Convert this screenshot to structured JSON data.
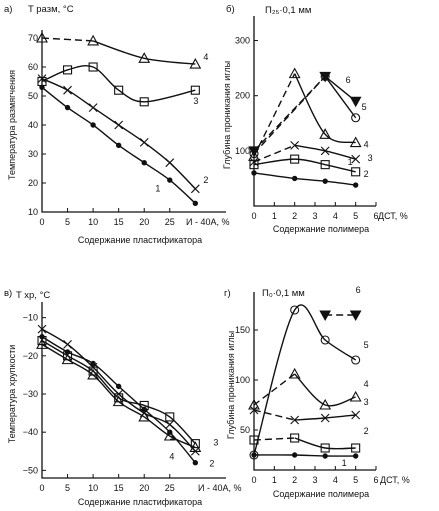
{
  "chart_data": [
    {
      "type": "line",
      "panel": "а)",
      "ylabel_top": "T разм, °C",
      "ylabel": "Температура размягчения",
      "xlabel": "Содержание пластификатора",
      "xlim": [
        0,
        36
      ],
      "ylim": [
        10,
        70
      ],
      "x_ticks": [
        0,
        5,
        10,
        15,
        20,
        25
      ],
      "x_tick_labels": [
        "0",
        "5",
        "10",
        "15",
        "20",
        "25"
      ],
      "x_end_label": "И - 40А, %",
      "y_ticks": [
        10,
        20,
        30,
        40,
        50,
        60,
        70
      ],
      "series": [
        {
          "name": "1",
          "marker": "dot",
          "x": [
            0,
            5,
            10,
            15,
            20,
            25,
            30
          ],
          "y": [
            53,
            46,
            40,
            33,
            27,
            21,
            13
          ]
        },
        {
          "name": "2",
          "marker": "x",
          "x": [
            0,
            5,
            10,
            15,
            20,
            25,
            30
          ],
          "y": [
            56,
            52,
            46,
            40,
            34,
            27,
            18
          ]
        },
        {
          "name": "3",
          "marker": "square",
          "x": [
            0,
            5,
            10,
            15,
            20,
            30
          ],
          "y": [
            55,
            59,
            60,
            52,
            48,
            52
          ]
        },
        {
          "name": "4",
          "marker": "triangle",
          "x": [
            0,
            10,
            20,
            30
          ],
          "y": [
            70,
            69,
            63,
            61
          ]
        }
      ]
    },
    {
      "type": "line",
      "panel": "б)",
      "ylabel_top": "П₂₅·0,1 мм",
      "ylabel": "Глубина проникания иглы",
      "xlabel": "Содержание полимера",
      "xlim": [
        0,
        6
      ],
      "ylim": [
        0,
        330
      ],
      "x_ticks": [
        0,
        1,
        2,
        3,
        4,
        5,
        6
      ],
      "x_tick_labels": [
        "0",
        "1",
        "2",
        "3",
        "4",
        "5",
        "6"
      ],
      "x_end_label": "ДСТ, %",
      "y_ticks": [
        100,
        200,
        300
      ],
      "series": [
        {
          "name": "1",
          "marker": "dot",
          "x": [
            0,
            2,
            3.5,
            5
          ],
          "y": [
            60,
            50,
            45,
            38
          ]
        },
        {
          "name": "2",
          "marker": "square",
          "x": [
            0,
            2,
            3.5,
            5
          ],
          "y": [
            75,
            85,
            75,
            62
          ]
        },
        {
          "name": "3",
          "marker": "x",
          "x": [
            0,
            2,
            3.5,
            5
          ],
          "y": [
            80,
            110,
            100,
            85
          ]
        },
        {
          "name": "4",
          "marker": "triangle",
          "x": [
            0,
            2,
            3.5,
            5
          ],
          "y": [
            90,
            240,
            130,
            115
          ]
        },
        {
          "name": "5",
          "marker": "circle",
          "x": [
            0,
            3.5,
            5
          ],
          "y": [
            95,
            235,
            160
          ]
        },
        {
          "name": "6",
          "marker": "triangle-down",
          "x": [
            0,
            3.5,
            5
          ],
          "y": [
            100,
            235,
            190
          ]
        }
      ]
    },
    {
      "type": "line",
      "panel": "в)",
      "ylabel_top": "T хр, °C",
      "ylabel": "Температура хрупкости",
      "xlabel": "Содержание пластификатора",
      "xlim": [
        0,
        36
      ],
      "ylim": [
        -52,
        -8
      ],
      "x_ticks": [
        0,
        5,
        10,
        15,
        20,
        25
      ],
      "x_tick_labels": [
        "0",
        "5",
        "10",
        "15",
        "20",
        "25"
      ],
      "x_end_label": "И - 40А, %",
      "y_ticks": [
        -10,
        -20,
        -30,
        -40,
        -50
      ],
      "series": [
        {
          "name": "1",
          "marker": "x",
          "x": [
            0,
            5,
            10,
            15,
            20,
            25,
            30
          ],
          "y": [
            -13,
            -17,
            -23,
            -30,
            -35,
            -38,
            -45
          ]
        },
        {
          "name": "2",
          "marker": "dot",
          "x": [
            0,
            5,
            10,
            15,
            20,
            25,
            30
          ],
          "y": [
            -15,
            -19,
            -22,
            -28,
            -34,
            -40,
            -48
          ]
        },
        {
          "name": "3",
          "marker": "square",
          "x": [
            0,
            5,
            10,
            15,
            20,
            25,
            30
          ],
          "y": [
            -16,
            -20,
            -24,
            -31,
            -33,
            -36,
            -43
          ]
        },
        {
          "name": "4",
          "marker": "triangle",
          "x": [
            0,
            5,
            10,
            15,
            20,
            25,
            30
          ],
          "y": [
            -17,
            -21,
            -25,
            -32,
            -36,
            -41,
            -44
          ]
        }
      ]
    },
    {
      "type": "line",
      "panel": "г)",
      "ylabel_top": "П₀·0,1 мм",
      "ylabel": "Глубина проникания иглы",
      "xlabel": "Содержание полимера",
      "xlim": [
        0,
        6
      ],
      "ylim": [
        10,
        180
      ],
      "x_ticks": [
        0,
        1,
        2,
        3,
        4,
        5,
        6
      ],
      "x_tick_labels": [
        "0",
        "1",
        "2",
        "3",
        "4",
        "5",
        "6"
      ],
      "x_end_label": "ДСТ, %",
      "y_ticks": [
        50,
        100,
        150
      ],
      "series": [
        {
          "name": "1",
          "marker": "dot",
          "x": [
            0,
            2,
            3.5,
            5
          ],
          "y": [
            25,
            25,
            24,
            24
          ]
        },
        {
          "name": "2",
          "marker": "square",
          "x": [
            0,
            2,
            3.5,
            5
          ],
          "y": [
            40,
            42,
            32,
            32
          ]
        },
        {
          "name": "3",
          "marker": "x",
          "x": [
            0,
            2,
            3.5,
            5
          ],
          "y": [
            70,
            60,
            62,
            65
          ]
        },
        {
          "name": "4",
          "marker": "triangle",
          "x": [
            0,
            2,
            3.5,
            5
          ],
          "y": [
            75,
            106,
            75,
            83
          ]
        },
        {
          "name": "5",
          "marker": "circle",
          "x": [
            0,
            2,
            3.5,
            5
          ],
          "y": [
            25,
            170,
            140,
            120
          ]
        },
        {
          "name": "6",
          "marker": "triangle-down",
          "x": [
            3.5,
            5
          ],
          "y": [
            165,
            165
          ]
        }
      ]
    }
  ]
}
